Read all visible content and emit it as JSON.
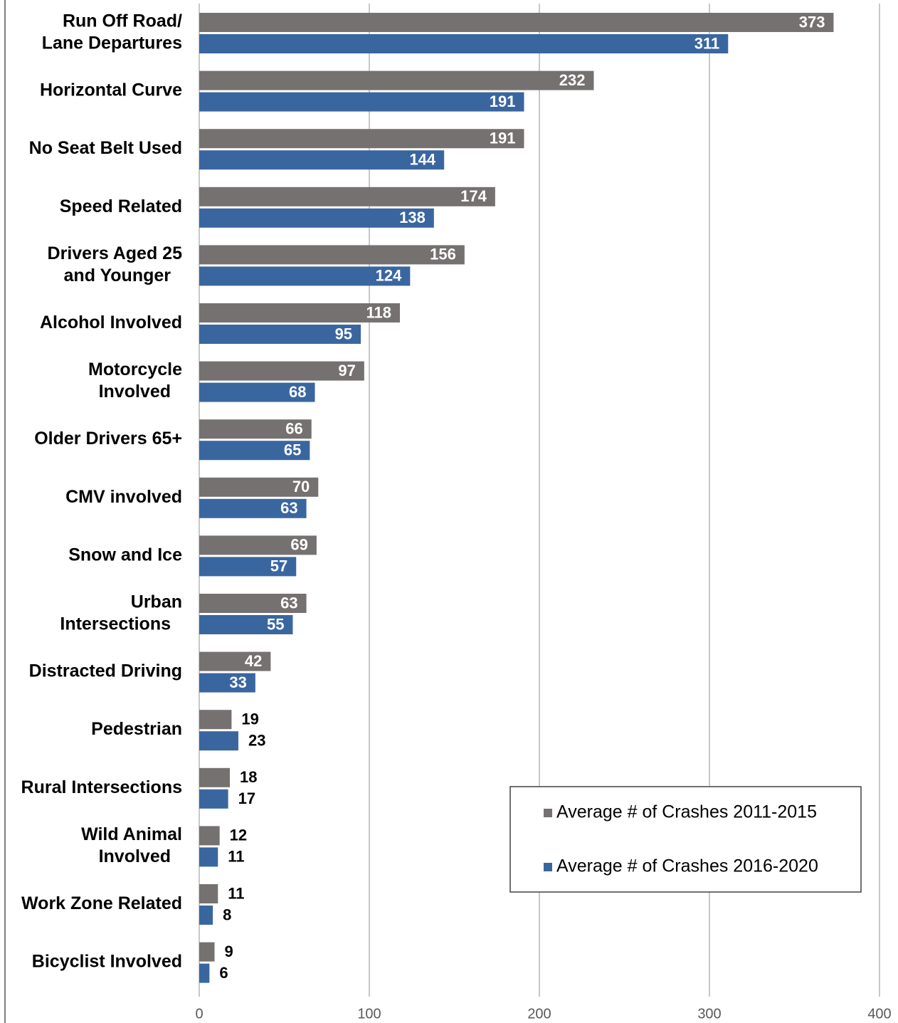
{
  "chart_data": {
    "type": "barh",
    "categories": [
      "Run Off Road/\nLane Departures",
      "Horizontal Curve",
      "No Seat Belt Used",
      "Speed Related",
      "Drivers Aged 25\nand Younger",
      "Alcohol Involved",
      "Motorcycle\nInvolved",
      "Older Drivers 65+",
      "CMV involved",
      "Snow and Ice",
      "Urban\nIntersections",
      "Distracted Driving",
      "Pedestrian",
      "Rural Intersections",
      "Wild Animal\nInvolved",
      "Work Zone Related",
      "Bicyclist Involved"
    ],
    "series": [
      {
        "name": "Average # of Crashes 2011-2015",
        "color": "#767171",
        "values": [
          373,
          232,
          191,
          174,
          156,
          118,
          97,
          66,
          70,
          69,
          63,
          42,
          19,
          18,
          12,
          11,
          9
        ]
      },
      {
        "name": "Average # of Crashes 2016-2020",
        "color": "#3a66a0",
        "values": [
          311,
          191,
          144,
          138,
          124,
          95,
          68,
          65,
          63,
          57,
          55,
          33,
          23,
          17,
          11,
          8,
          6
        ]
      }
    ],
    "xlim": [
      0,
      400
    ],
    "xticks": [
      0,
      100,
      200,
      300,
      400
    ],
    "grid": true,
    "legend": "lower right"
  }
}
